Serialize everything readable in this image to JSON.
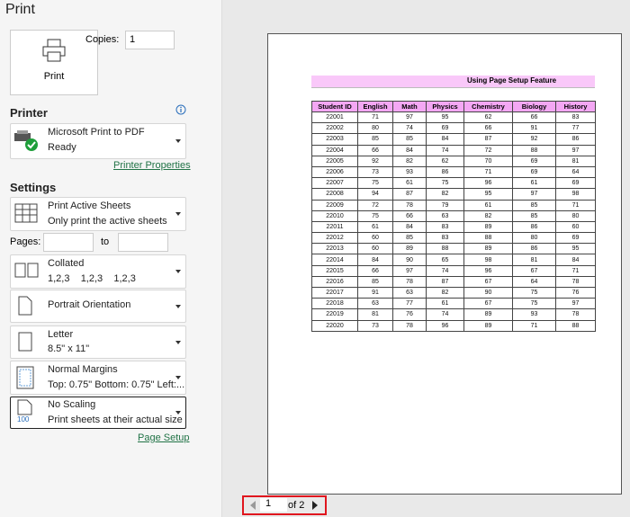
{
  "title": "Print",
  "print_button": {
    "label": "Print"
  },
  "copies": {
    "label": "Copies:",
    "value": "1"
  },
  "printer": {
    "heading": "Printer",
    "name": "Microsoft Print to PDF",
    "status": "Ready",
    "properties_link": "Printer Properties"
  },
  "settings": {
    "heading": "Settings",
    "sheets": {
      "title": "Print Active Sheets",
      "subtitle": "Only print the active sheets"
    },
    "pages": {
      "label": "Pages:",
      "to": "to"
    },
    "collated": {
      "title": "Collated",
      "subtitle": "1,2,3    1,2,3    1,2,3"
    },
    "orientation": {
      "title": "Portrait Orientation"
    },
    "paper": {
      "title": "Letter",
      "subtitle": "8.5\" x 11\""
    },
    "margins": {
      "title": "Normal Margins",
      "subtitle": "Top: 0.75\" Bottom: 0.75\" Left:..."
    },
    "scaling": {
      "title": "No Scaling",
      "subtitle": "Print sheets at their actual size",
      "icon_label": "100"
    },
    "page_setup_link": "Page Setup"
  },
  "navigation": {
    "current": "1",
    "total": "of 2"
  },
  "preview": {
    "title": "Using Page Setup Feature",
    "headers": [
      "Student ID",
      "English",
      "Math",
      "Physics",
      "Chemistry",
      "Biology",
      "History"
    ],
    "rows": [
      [
        22001,
        71,
        97,
        95,
        62,
        66,
        83
      ],
      [
        22002,
        80,
        74,
        69,
        66,
        91,
        77
      ],
      [
        22003,
        85,
        85,
        84,
        87,
        92,
        86
      ],
      [
        22004,
        66,
        84,
        74,
        72,
        88,
        97
      ],
      [
        22005,
        92,
        82,
        62,
        70,
        69,
        81
      ],
      [
        22006,
        73,
        93,
        86,
        71,
        69,
        64
      ],
      [
        22007,
        75,
        61,
        75,
        96,
        61,
        69
      ],
      [
        22008,
        94,
        87,
        82,
        95,
        97,
        98
      ],
      [
        22009,
        72,
        78,
        79,
        61,
        85,
        71
      ],
      [
        22010,
        75,
        66,
        63,
        82,
        85,
        80
      ],
      [
        22011,
        61,
        84,
        83,
        89,
        86,
        60
      ],
      [
        22012,
        60,
        85,
        83,
        88,
        80,
        69
      ],
      [
        22013,
        60,
        89,
        88,
        89,
        86,
        95
      ],
      [
        22014,
        84,
        90,
        65,
        98,
        81,
        84
      ],
      [
        22015,
        66,
        97,
        74,
        96,
        67,
        71
      ],
      [
        22016,
        85,
        78,
        87,
        67,
        64,
        78
      ],
      [
        22017,
        91,
        63,
        82,
        90,
        75,
        76
      ],
      [
        22018,
        63,
        77,
        61,
        67,
        75,
        97
      ],
      [
        22019,
        81,
        76,
        74,
        89,
        93,
        78
      ],
      [
        22020,
        73,
        78,
        96,
        89,
        71,
        88
      ]
    ]
  }
}
